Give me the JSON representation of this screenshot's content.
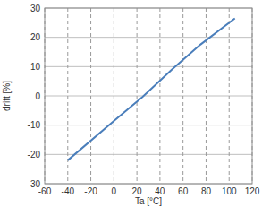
{
  "chart_data": {
    "type": "line",
    "x_label": "Ta [°C]",
    "y_label": "drift [%]",
    "series": [
      {
        "name": "drift",
        "color": "#4a7ebb",
        "x": [
          -40,
          0,
          25,
          50,
          75,
          105
        ],
        "values": [
          -22,
          -8.6,
          -0.3,
          8.9,
          17.5,
          26.5
        ]
      }
    ],
    "xlim": [
      -60,
      120
    ],
    "xticks": [
      -60,
      -40,
      -20,
      0,
      20,
      40,
      60,
      80,
      100,
      120
    ],
    "ylim": [
      -30,
      30
    ],
    "yticks": [
      -30,
      -20,
      -10,
      0,
      10,
      20,
      30
    ],
    "grid": true
  }
}
